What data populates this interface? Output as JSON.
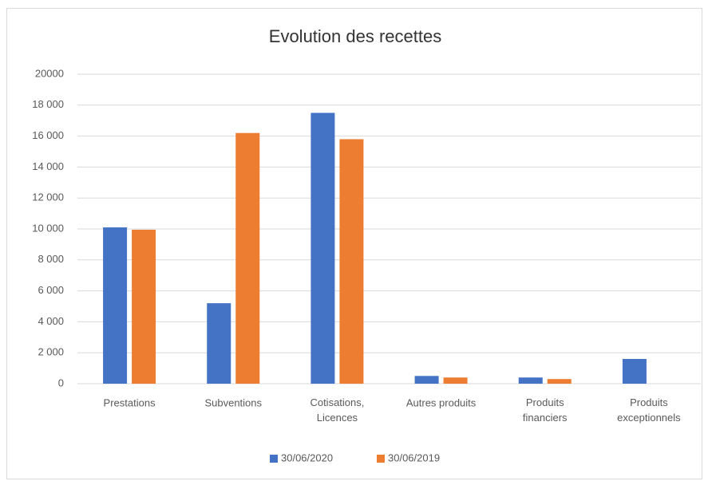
{
  "chart_data": {
    "type": "bar",
    "title": "Evolution des recettes",
    "categories": [
      "Prestations",
      "Subventions",
      "Cotisations,\nLicences",
      "Autres produits",
      "Produits\nfinanciers",
      "Produits\nexceptionnels"
    ],
    "series": [
      {
        "name": "30/06/2020",
        "color": "#4472c4",
        "values": [
          10100,
          5200,
          17500,
          500,
          400,
          1600
        ]
      },
      {
        "name": "30/06/2019",
        "color": "#ed7d31",
        "values": [
          9950,
          16200,
          15800,
          400,
          300,
          null
        ]
      }
    ],
    "ylim": [
      0,
      20000
    ],
    "yticks": [
      0,
      {
        "value": 2000,
        "label": "2 000"
      },
      {
        "value": 4000,
        "label": "4 000"
      },
      {
        "value": 6000,
        "label": "6 000"
      },
      {
        "value": 8000,
        "label": "8 000"
      },
      {
        "value": 10000,
        "label": "10 000"
      },
      {
        "value": 12000,
        "label": "12 000"
      },
      {
        "value": 14000,
        "label": "14 000"
      },
      {
        "value": 16000,
        "label": "16 000"
      },
      {
        "value": 18000,
        "label": "18 000"
      },
      20000
    ],
    "grid": true,
    "legend": "bottom"
  }
}
